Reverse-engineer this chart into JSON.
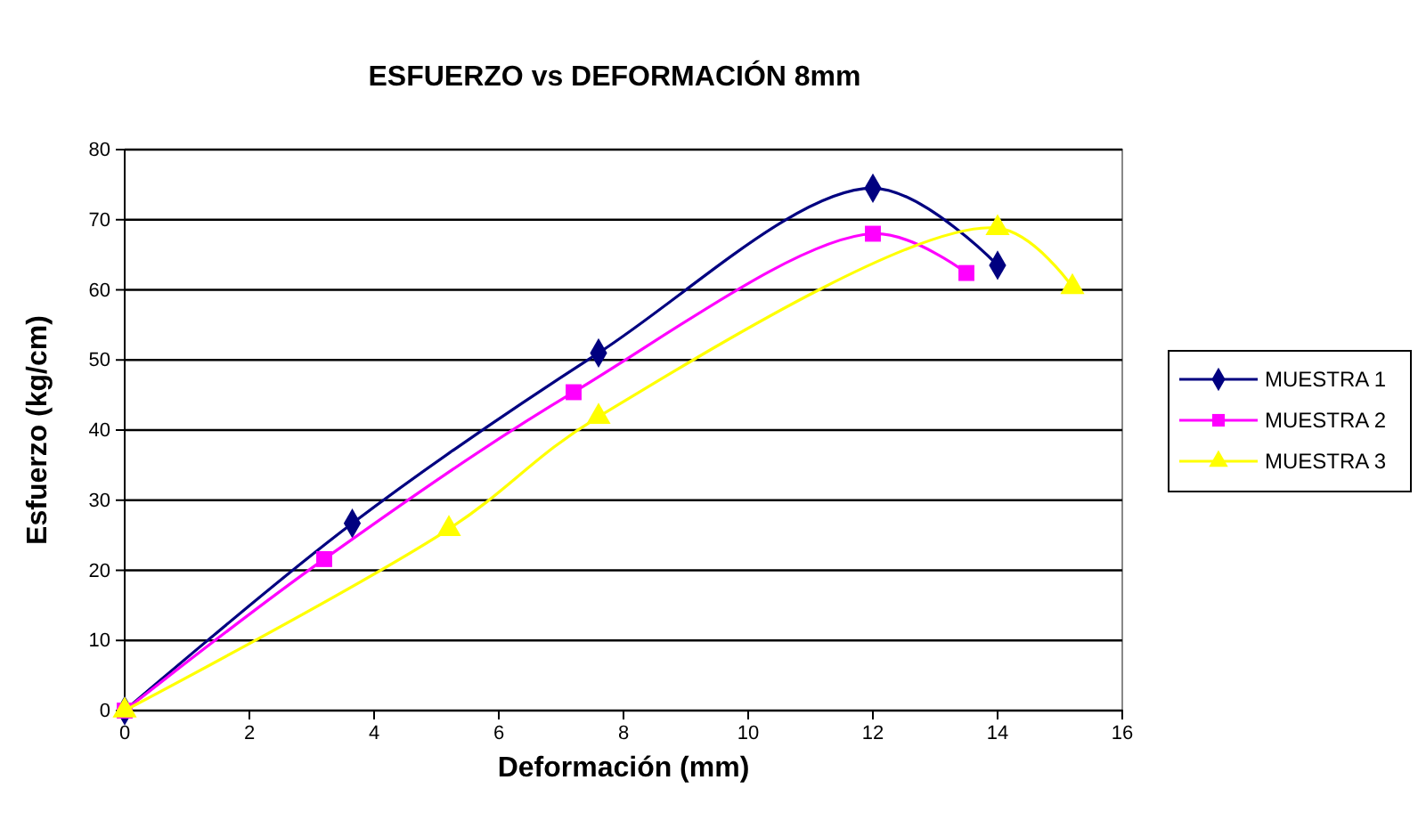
{
  "chart_data": {
    "type": "line",
    "title": "ESFUERZO vs DEFORMACIÓN 8mm",
    "xlabel": "Deformación (mm)",
    "ylabel": "Esfuerzo (kg/cm)",
    "xlim": [
      0,
      16
    ],
    "xticks": [
      0,
      2,
      4,
      6,
      8,
      10,
      12,
      14,
      16
    ],
    "ylim": [
      0,
      80
    ],
    "yticks": [
      0,
      10,
      20,
      30,
      40,
      50,
      60,
      70,
      80
    ],
    "grid": "y",
    "legend": "right",
    "series": [
      {
        "name": "MUESTRA 1",
        "color": "#000080",
        "marker": "diamond",
        "x": [
          0,
          3.65,
          7.6,
          12,
          14
        ],
        "values": [
          0,
          26.7,
          51,
          74.5,
          63.5
        ]
      },
      {
        "name": "MUESTRA 2",
        "color": "#ff00ff",
        "marker": "square",
        "x": [
          0,
          3.2,
          7.2,
          12,
          13.5
        ],
        "values": [
          0,
          21.6,
          45.4,
          68,
          62.4
        ]
      },
      {
        "name": "MUESTRA 3",
        "color": "#ffff00",
        "marker": "triangle",
        "x": [
          0,
          5.2,
          7.6,
          14,
          15.2
        ],
        "values": [
          0,
          25.9,
          41.9,
          68.8,
          60.4
        ]
      }
    ]
  }
}
